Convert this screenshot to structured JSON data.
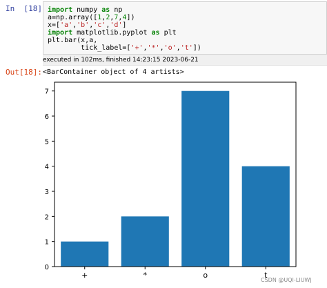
{
  "input_cell": {
    "prompt": "In  [18]:",
    "code": {
      "line1": {
        "kw": "import",
        "rest": " numpy ",
        "kw2": "as",
        "rest2": " np"
      },
      "line2": {
        "pre": "a=np.array([",
        "n1": "1",
        "c1": ",",
        "n2": "2",
        "c2": ",",
        "n3": "7",
        "c3": ",",
        "n4": "4",
        "post": "])"
      },
      "line3": {
        "pre": "x=[",
        "s1": "'a'",
        "c1": ",",
        "s2": "'b'",
        "c2": ",",
        "s3": "'c'",
        "c3": ",",
        "s4": "'d'",
        "post": "]"
      },
      "line4": {
        "kw": "import",
        "rest": " matplotlib.pyplot ",
        "kw2": "as",
        "rest2": " plt"
      },
      "line5": "plt.bar(x,a,",
      "line6": {
        "pre": "        tick_label=[",
        "s1": "'+'",
        "c1": ",",
        "s2": "'*'",
        "c2": ",",
        "s3": "'o'",
        "c3": ",",
        "s4": "'t'",
        "post": "])"
      }
    },
    "execution_status": "executed in 102ms, finished 14:23:15 2023-06-21"
  },
  "output_cell": {
    "prompt": "Out[18]:",
    "text": "<BarContainer object of 4 artists>"
  },
  "chart_data": {
    "type": "bar",
    "categories": [
      "+",
      "*",
      "o",
      "t"
    ],
    "values": [
      1,
      2,
      7,
      4
    ],
    "title": "",
    "xlabel": "",
    "ylabel": "",
    "ylim": [
      0,
      7.35
    ],
    "yticks": [
      0,
      1,
      2,
      3,
      4,
      5,
      6,
      7
    ],
    "bar_color": "#1f77b4",
    "grid": false
  },
  "watermark": "CSDN @UQI-LIUWJ"
}
